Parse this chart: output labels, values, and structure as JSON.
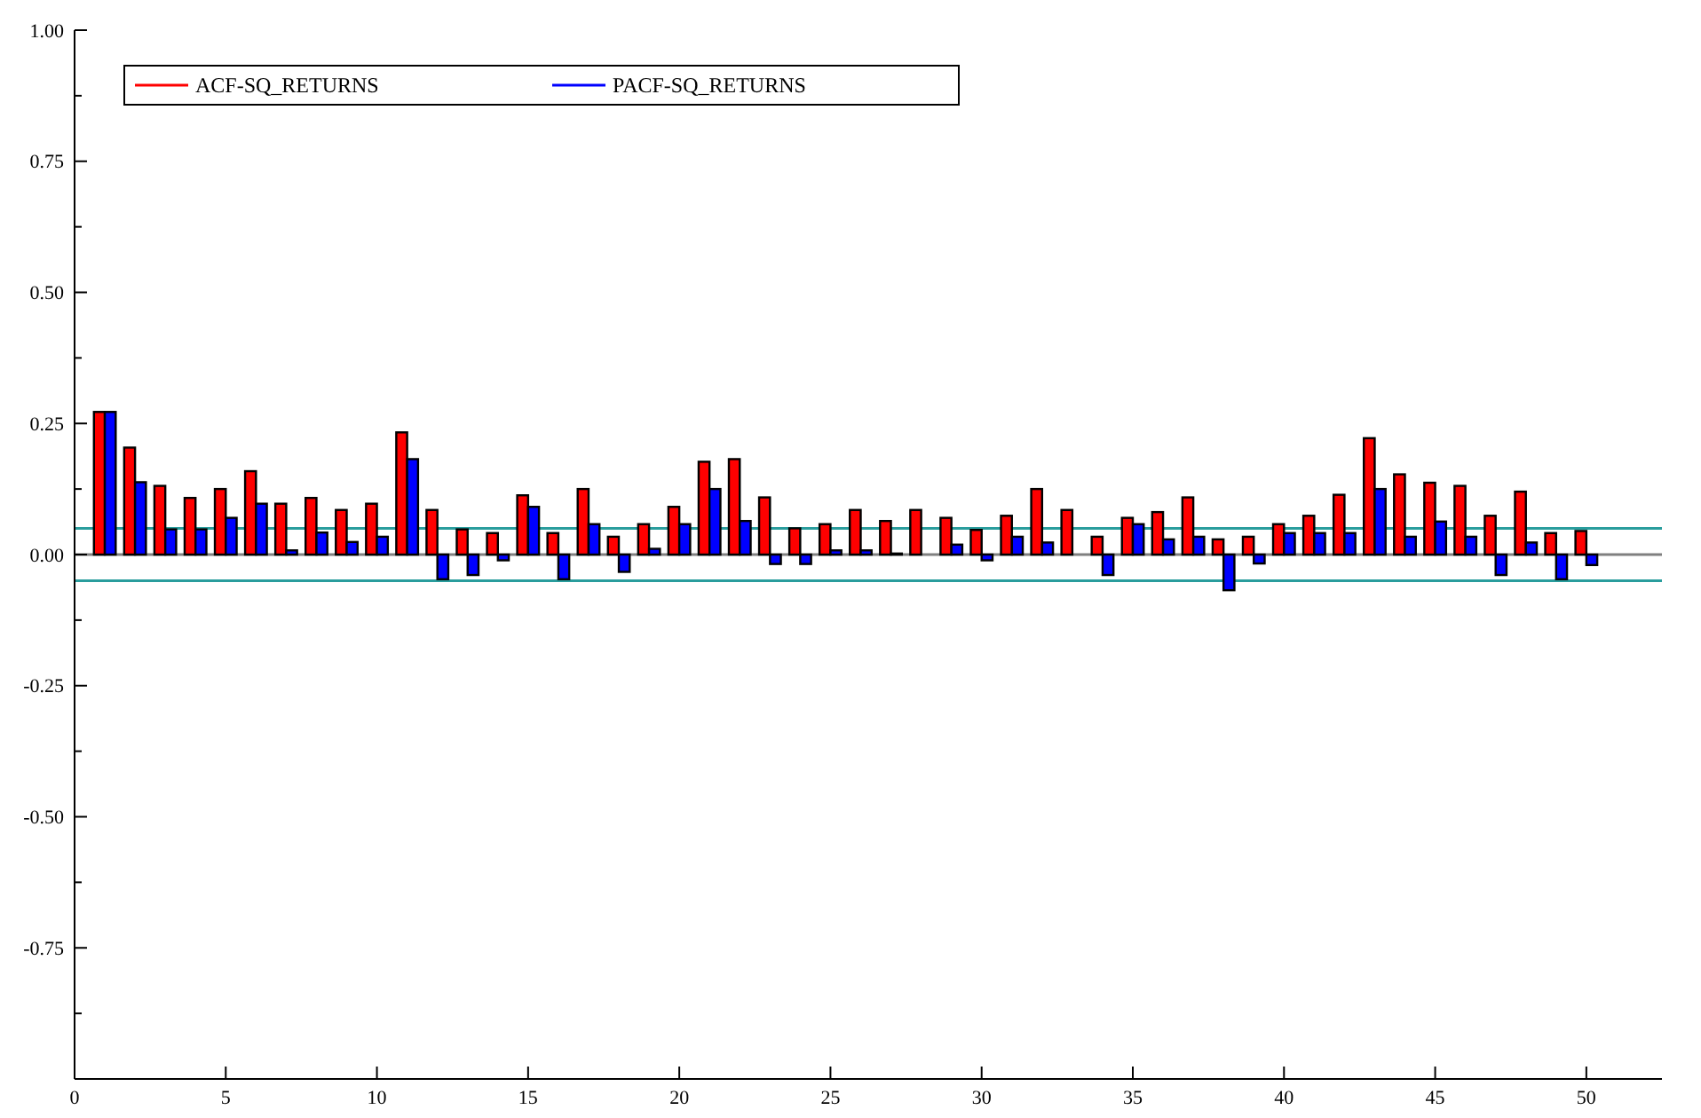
{
  "chart_data": {
    "type": "bar",
    "x": [
      1,
      2,
      3,
      4,
      5,
      6,
      7,
      8,
      9,
      10,
      11,
      12,
      13,
      14,
      15,
      16,
      17,
      18,
      19,
      20,
      21,
      22,
      23,
      24,
      25,
      26,
      27,
      28,
      29,
      30,
      31,
      32,
      33,
      34,
      35,
      36,
      37,
      38,
      39,
      40,
      41,
      42,
      43,
      44,
      45,
      46,
      47,
      48,
      49,
      50
    ],
    "series": [
      {
        "name": "ACF-SQ_RETURNS",
        "color": "#ff0000",
        "values": [
          0.272,
          0.204,
          0.131,
          0.108,
          0.125,
          0.159,
          0.097,
          0.108,
          0.085,
          0.097,
          0.233,
          0.085,
          0.048,
          0.041,
          0.113,
          0.041,
          0.125,
          0.034,
          0.058,
          0.091,
          0.177,
          0.182,
          0.109,
          0.05,
          0.058,
          0.085,
          0.064,
          0.085,
          0.07,
          0.047,
          0.074,
          0.125,
          0.085,
          0.034,
          0.07,
          0.081,
          0.109,
          0.029,
          0.034,
          0.058,
          0.074,
          0.114,
          0.222,
          0.153,
          0.137,
          0.131,
          0.074,
          0.12,
          0.041,
          0.045
        ]
      },
      {
        "name": "PACF-SQ_RETURNS",
        "color": "#0000ff",
        "values": [
          0.272,
          0.138,
          0.048,
          0.048,
          0.07,
          0.097,
          0.008,
          0.042,
          0.024,
          0.034,
          0.182,
          -0.047,
          -0.039,
          -0.011,
          0.091,
          -0.047,
          0.058,
          -0.033,
          0.011,
          0.058,
          0.125,
          0.064,
          -0.018,
          -0.018,
          0.008,
          0.008,
          0.002,
          0,
          0.019,
          -0.011,
          0.034,
          0.023,
          0,
          -0.039,
          0.058,
          0.029,
          0.034,
          -0.068,
          -0.017,
          0.041,
          0.041,
          0.041,
          0.125,
          0.034,
          0.063,
          0.034,
          -0.039,
          0.023,
          -0.047,
          -0.02
        ]
      }
    ],
    "xlim": [
      0,
      52.5
    ],
    "xticks": [
      0,
      5,
      10,
      15,
      20,
      25,
      30,
      35,
      40,
      45,
      50
    ],
    "ylim": [
      -1,
      1
    ],
    "yticks": [
      {
        "value": -0.875,
        "label": null
      },
      {
        "value": -0.75,
        "label": "-0.75"
      },
      {
        "value": -0.625,
        "label": null
      },
      {
        "value": -0.5,
        "label": "-0.50"
      },
      {
        "value": -0.375,
        "label": null
      },
      {
        "value": -0.25,
        "label": "-0.25"
      },
      {
        "value": -0.125,
        "label": null
      },
      {
        "value": 0,
        "label": "0.00"
      },
      {
        "value": 0.125,
        "label": null
      },
      {
        "value": 0.25,
        "label": "0.25"
      },
      {
        "value": 0.375,
        "label": null
      },
      {
        "value": 0.5,
        "label": "0.50"
      },
      {
        "value": 0.625,
        "label": null
      },
      {
        "value": 0.75,
        "label": "0.75"
      },
      {
        "value": 0.875,
        "label": null
      },
      {
        "value": 1,
        "label": "1.00"
      }
    ],
    "ref_lines": [
      {
        "axis": "y",
        "value": 0,
        "color": "#808080"
      },
      {
        "axis": "y",
        "value": 0.05,
        "color": "#2a9d9d"
      },
      {
        "axis": "y",
        "value": -0.05,
        "color": "#2a9d9d"
      }
    ],
    "legend": "top left",
    "grid": false
  }
}
